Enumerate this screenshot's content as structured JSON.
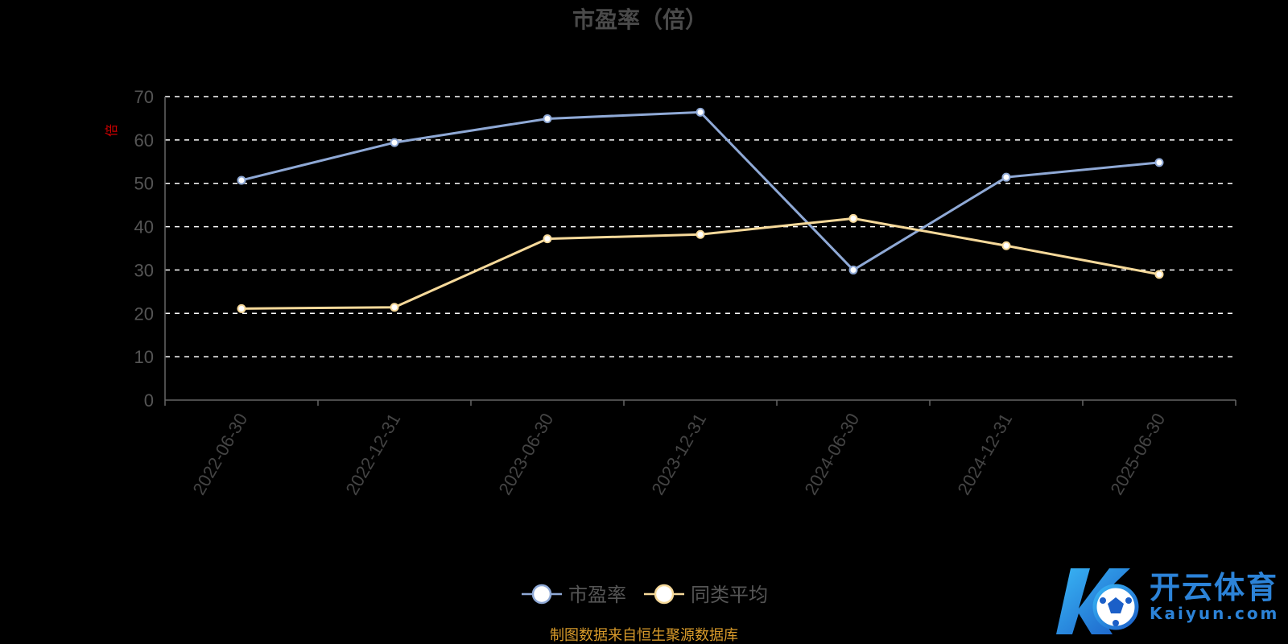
{
  "chart_data": {
    "type": "line",
    "title": "市盈率（倍）",
    "ylabel": "倍",
    "categories": [
      "2022-06-30",
      "2022-12-31",
      "2023-06-30",
      "2023-12-31",
      "2024-06-30",
      "2024-12-31",
      "2025-06-30"
    ],
    "series": [
      {
        "name": "市盈率",
        "color": "#8fa9d6",
        "values": [
          50.7,
          59.4,
          64.9,
          66.4,
          30.0,
          51.4,
          54.8
        ]
      },
      {
        "name": "同类平均",
        "color": "#f6d99a",
        "values": [
          21.1,
          21.4,
          37.2,
          38.2,
          41.9,
          35.6,
          29.0
        ]
      }
    ],
    "ylim": [
      0,
      70
    ],
    "yticks": [
      0,
      10,
      20,
      30,
      40,
      50,
      60,
      70
    ],
    "grid": true,
    "legend_position": "bottom-center"
  },
  "source_note": "制图数据来自恒生聚源数据库",
  "watermark": {
    "cn": "开云体育",
    "en": "Kaiyun.com"
  }
}
